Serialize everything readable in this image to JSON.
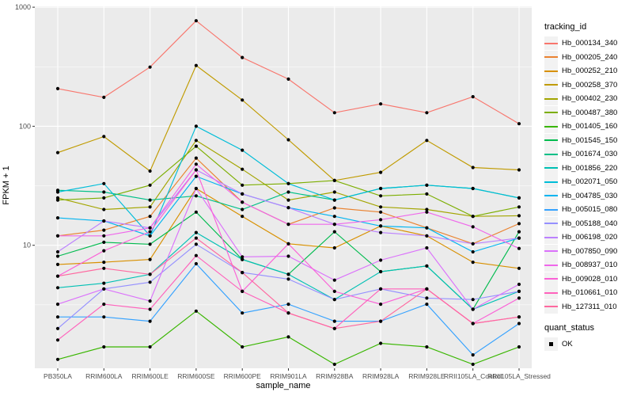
{
  "figure": {
    "y_axis": {
      "title": "FPKM + 1",
      "ticks": [
        {
          "label": "1000",
          "value": 1000
        },
        {
          "label": "100",
          "value": 100
        },
        {
          "label": "10",
          "value": 10
        }
      ]
    },
    "x_axis": {
      "title": "sample_name"
    },
    "legend": {
      "tracking_title": "tracking_id",
      "quant_title": "quant_status",
      "quant_ok_label": "OK"
    }
  },
  "colors": {
    "panel_bg": "#EBEBEB",
    "grid_major": "#FFFFFF",
    "grid_minor": "#FFFFFF",
    "tick_mark": "#333333",
    "tick_label": "#4D4D4D",
    "point": "#000000",
    "legend_key_bg": "#F2F2F2"
  },
  "chart_data": {
    "type": "line",
    "title": "",
    "xlabel": "sample_name",
    "ylabel": "FPKM + 1",
    "y_scale": "log10",
    "ylim": [
      1,
      1000
    ],
    "y_major_breaks": [
      10,
      100,
      1000
    ],
    "y_minor_breaks": [
      3.162,
      31.62,
      316.2
    ],
    "grid": true,
    "legend_position": "right",
    "point_marker": "black-dot (quant_status OK)",
    "categories": [
      "PB350LA",
      "RRIM600LA",
      "RRIM600LE",
      "RRIM600SE",
      "RRIM600PE",
      "RRIM901LA",
      "RRIM928BA",
      "RRIM928LA",
      "RRIM928LE",
      "RRII105LA_Control",
      "RRII105LA_Stressed"
    ],
    "series": [
      {
        "name": "Hb_000134_340",
        "color": "#F8766D",
        "values": [
          207,
          175,
          314,
          770,
          378,
          249,
          130,
          154,
          130,
          177,
          105
        ]
      },
      {
        "name": "Hb_000205_240",
        "color": "#EA8331",
        "values": [
          12,
          13.4,
          17.5,
          54,
          23,
          15,
          20.6,
          19,
          14,
          10.3,
          15.2
        ]
      },
      {
        "name": "Hb_000252_210",
        "color": "#D89000",
        "values": [
          6.9,
          7.2,
          7.6,
          30,
          17.5,
          10.3,
          9.5,
          14.5,
          12,
          7.2,
          6.4
        ]
      },
      {
        "name": "Hb_000258_370",
        "color": "#C09B00",
        "values": [
          60,
          82,
          42,
          324,
          166,
          77,
          35,
          41,
          76,
          45,
          43
        ]
      },
      {
        "name": "Hb_000402_230",
        "color": "#A3A500",
        "values": [
          25,
          20,
          21,
          76,
          43.5,
          24,
          28,
          21,
          20,
          17.5,
          17.7
        ]
      },
      {
        "name": "Hb_000487_380",
        "color": "#7CAE00",
        "values": [
          24,
          25,
          32,
          68,
          32,
          33,
          35,
          26,
          27,
          17.5,
          21
        ]
      },
      {
        "name": "Hb_001405_160",
        "color": "#39B600",
        "values": [
          1.1,
          1.4,
          1.4,
          2.8,
          1.4,
          1.7,
          1.0,
          1.5,
          1.4,
          1.0,
          1.4
        ]
      },
      {
        "name": "Hb_001545_150",
        "color": "#00BB4E",
        "values": [
          8.1,
          10.6,
          10.2,
          19,
          7.6,
          5.7,
          13,
          6.0,
          6.7,
          2.9,
          13
        ]
      },
      {
        "name": "Hb_001674_030",
        "color": "#00C087",
        "values": [
          29,
          28,
          24,
          26,
          20,
          28,
          24,
          30,
          32,
          30,
          25
        ]
      },
      {
        "name": "Hb_001856_220",
        "color": "#00C0B4",
        "values": [
          4.4,
          4.8,
          5.7,
          12.8,
          7.6,
          5.7,
          3.5,
          6.0,
          6.7,
          2.9,
          4.1
        ]
      },
      {
        "name": "Hb_002071_050",
        "color": "#00BDD8",
        "values": [
          28,
          33,
          12,
          100,
          63,
          33,
          24,
          30,
          32,
          30,
          25
        ]
      },
      {
        "name": "Hb_004785_030",
        "color": "#00B4F0",
        "values": [
          17,
          16,
          12,
          38,
          27,
          20.7,
          17.5,
          14.5,
          14,
          8.8,
          11.5
        ]
      },
      {
        "name": "Hb_005015_080",
        "color": "#35A2FF",
        "values": [
          2.5,
          2.5,
          2.3,
          7.0,
          2.7,
          3.2,
          2.3,
          2.3,
          3.2,
          1.2,
          2.2
        ]
      },
      {
        "name": "Hb_005188_040",
        "color": "#9590FF",
        "values": [
          2.0,
          4.3,
          4.9,
          10.2,
          5.9,
          5.2,
          3.5,
          4.3,
          3.6,
          3.5,
          4.1
        ]
      },
      {
        "name": "Hb_006198_020",
        "color": "#BC81FF",
        "values": [
          8.8,
          16,
          14,
          43,
          27,
          20.7,
          15,
          12.8,
          12,
          10.3,
          11.5
        ]
      },
      {
        "name": "Hb_007850_090",
        "color": "#DB72FB",
        "values": [
          3.2,
          4.3,
          3.4,
          30,
          8.0,
          8.1,
          5.1,
          7.5,
          9.5,
          2.9,
          4.7
        ]
      },
      {
        "name": "Hb_008937_010",
        "color": "#EF67EB",
        "values": [
          12,
          12,
          14,
          48,
          23,
          15,
          15,
          16.4,
          19,
          14.3,
          9.4
        ]
      },
      {
        "name": "Hb_009028_010",
        "color": "#FB61D7",
        "values": [
          5.5,
          9.0,
          13,
          43,
          4.1,
          10.3,
          4.1,
          3.2,
          4.3,
          2.2,
          3.6
        ]
      },
      {
        "name": "Hb_010661_010",
        "color": "#FF62BC",
        "values": [
          1.6,
          3.2,
          2.9,
          8.2,
          4.1,
          2.7,
          2.0,
          4.3,
          4.3,
          2.2,
          2.5
        ]
      },
      {
        "name": "Hb_127311_010",
        "color": "#FF689F",
        "values": [
          5.5,
          6.4,
          5.7,
          11.5,
          5.9,
          2.7,
          2.0,
          2.3,
          4.3,
          2.2,
          2.5
        ]
      }
    ]
  }
}
